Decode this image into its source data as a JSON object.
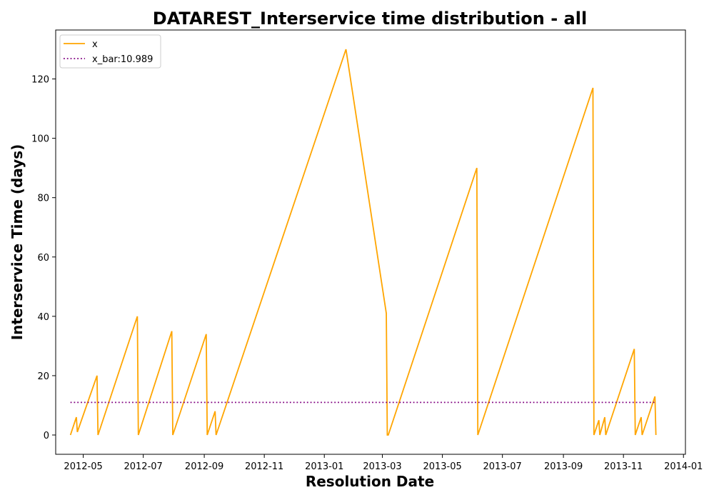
{
  "chart_data": {
    "type": "line",
    "title": "DATAREST_Interservice time distribution - all",
    "xlabel": "Resolution Date",
    "ylabel": "Interservice Time (days)",
    "x_ticks": [
      "2012-05",
      "2012-07",
      "2012-09",
      "2012-11",
      "2013-01",
      "2013-03",
      "2013-05",
      "2013-07",
      "2013-09",
      "2013-11",
      "2014-01"
    ],
    "y_ticks": [
      "0",
      "20",
      "40",
      "60",
      "80",
      "100",
      "120"
    ],
    "xlim": [
      "2012-04-03",
      "2014-01-03"
    ],
    "ylim": [
      -6.5,
      136.5
    ],
    "grid": false,
    "legend_position": "top-left",
    "series": [
      {
        "name": "x",
        "color": "#FFA500",
        "style": "solid",
        "points": [
          [
            "2012-04-18",
            0
          ],
          [
            "2012-04-24",
            6
          ],
          [
            "2012-04-25",
            1
          ],
          [
            "2012-05-15",
            20
          ],
          [
            "2012-05-16",
            0
          ],
          [
            "2012-06-25",
            40
          ],
          [
            "2012-06-26",
            0
          ],
          [
            "2012-07-30",
            35
          ],
          [
            "2012-07-31",
            0
          ],
          [
            "2012-09-03",
            34
          ],
          [
            "2012-09-04",
            0
          ],
          [
            "2012-09-12",
            8
          ],
          [
            "2012-09-13",
            0
          ],
          [
            "2013-01-23",
            130
          ],
          [
            "2013-03-05",
            41
          ],
          [
            "2013-03-06",
            0
          ],
          [
            "2013-03-07",
            0
          ],
          [
            "2013-06-05",
            90
          ],
          [
            "2013-06-06",
            0
          ],
          [
            "2013-10-01",
            117
          ],
          [
            "2013-10-02",
            0
          ],
          [
            "2013-10-07",
            5
          ],
          [
            "2013-10-08",
            0
          ],
          [
            "2013-10-13",
            6
          ],
          [
            "2013-10-14",
            0
          ],
          [
            "2013-11-12",
            29
          ],
          [
            "2013-11-13",
            0
          ],
          [
            "2013-11-19",
            6
          ],
          [
            "2013-11-20",
            0
          ],
          [
            "2013-12-03",
            13
          ],
          [
            "2013-12-04",
            0
          ]
        ]
      },
      {
        "name": "x_bar:10.989",
        "color": "#800080",
        "style": "dotted",
        "points": [
          [
            "2012-04-18",
            10.989
          ],
          [
            "2013-12-04",
            10.989
          ]
        ]
      }
    ]
  }
}
